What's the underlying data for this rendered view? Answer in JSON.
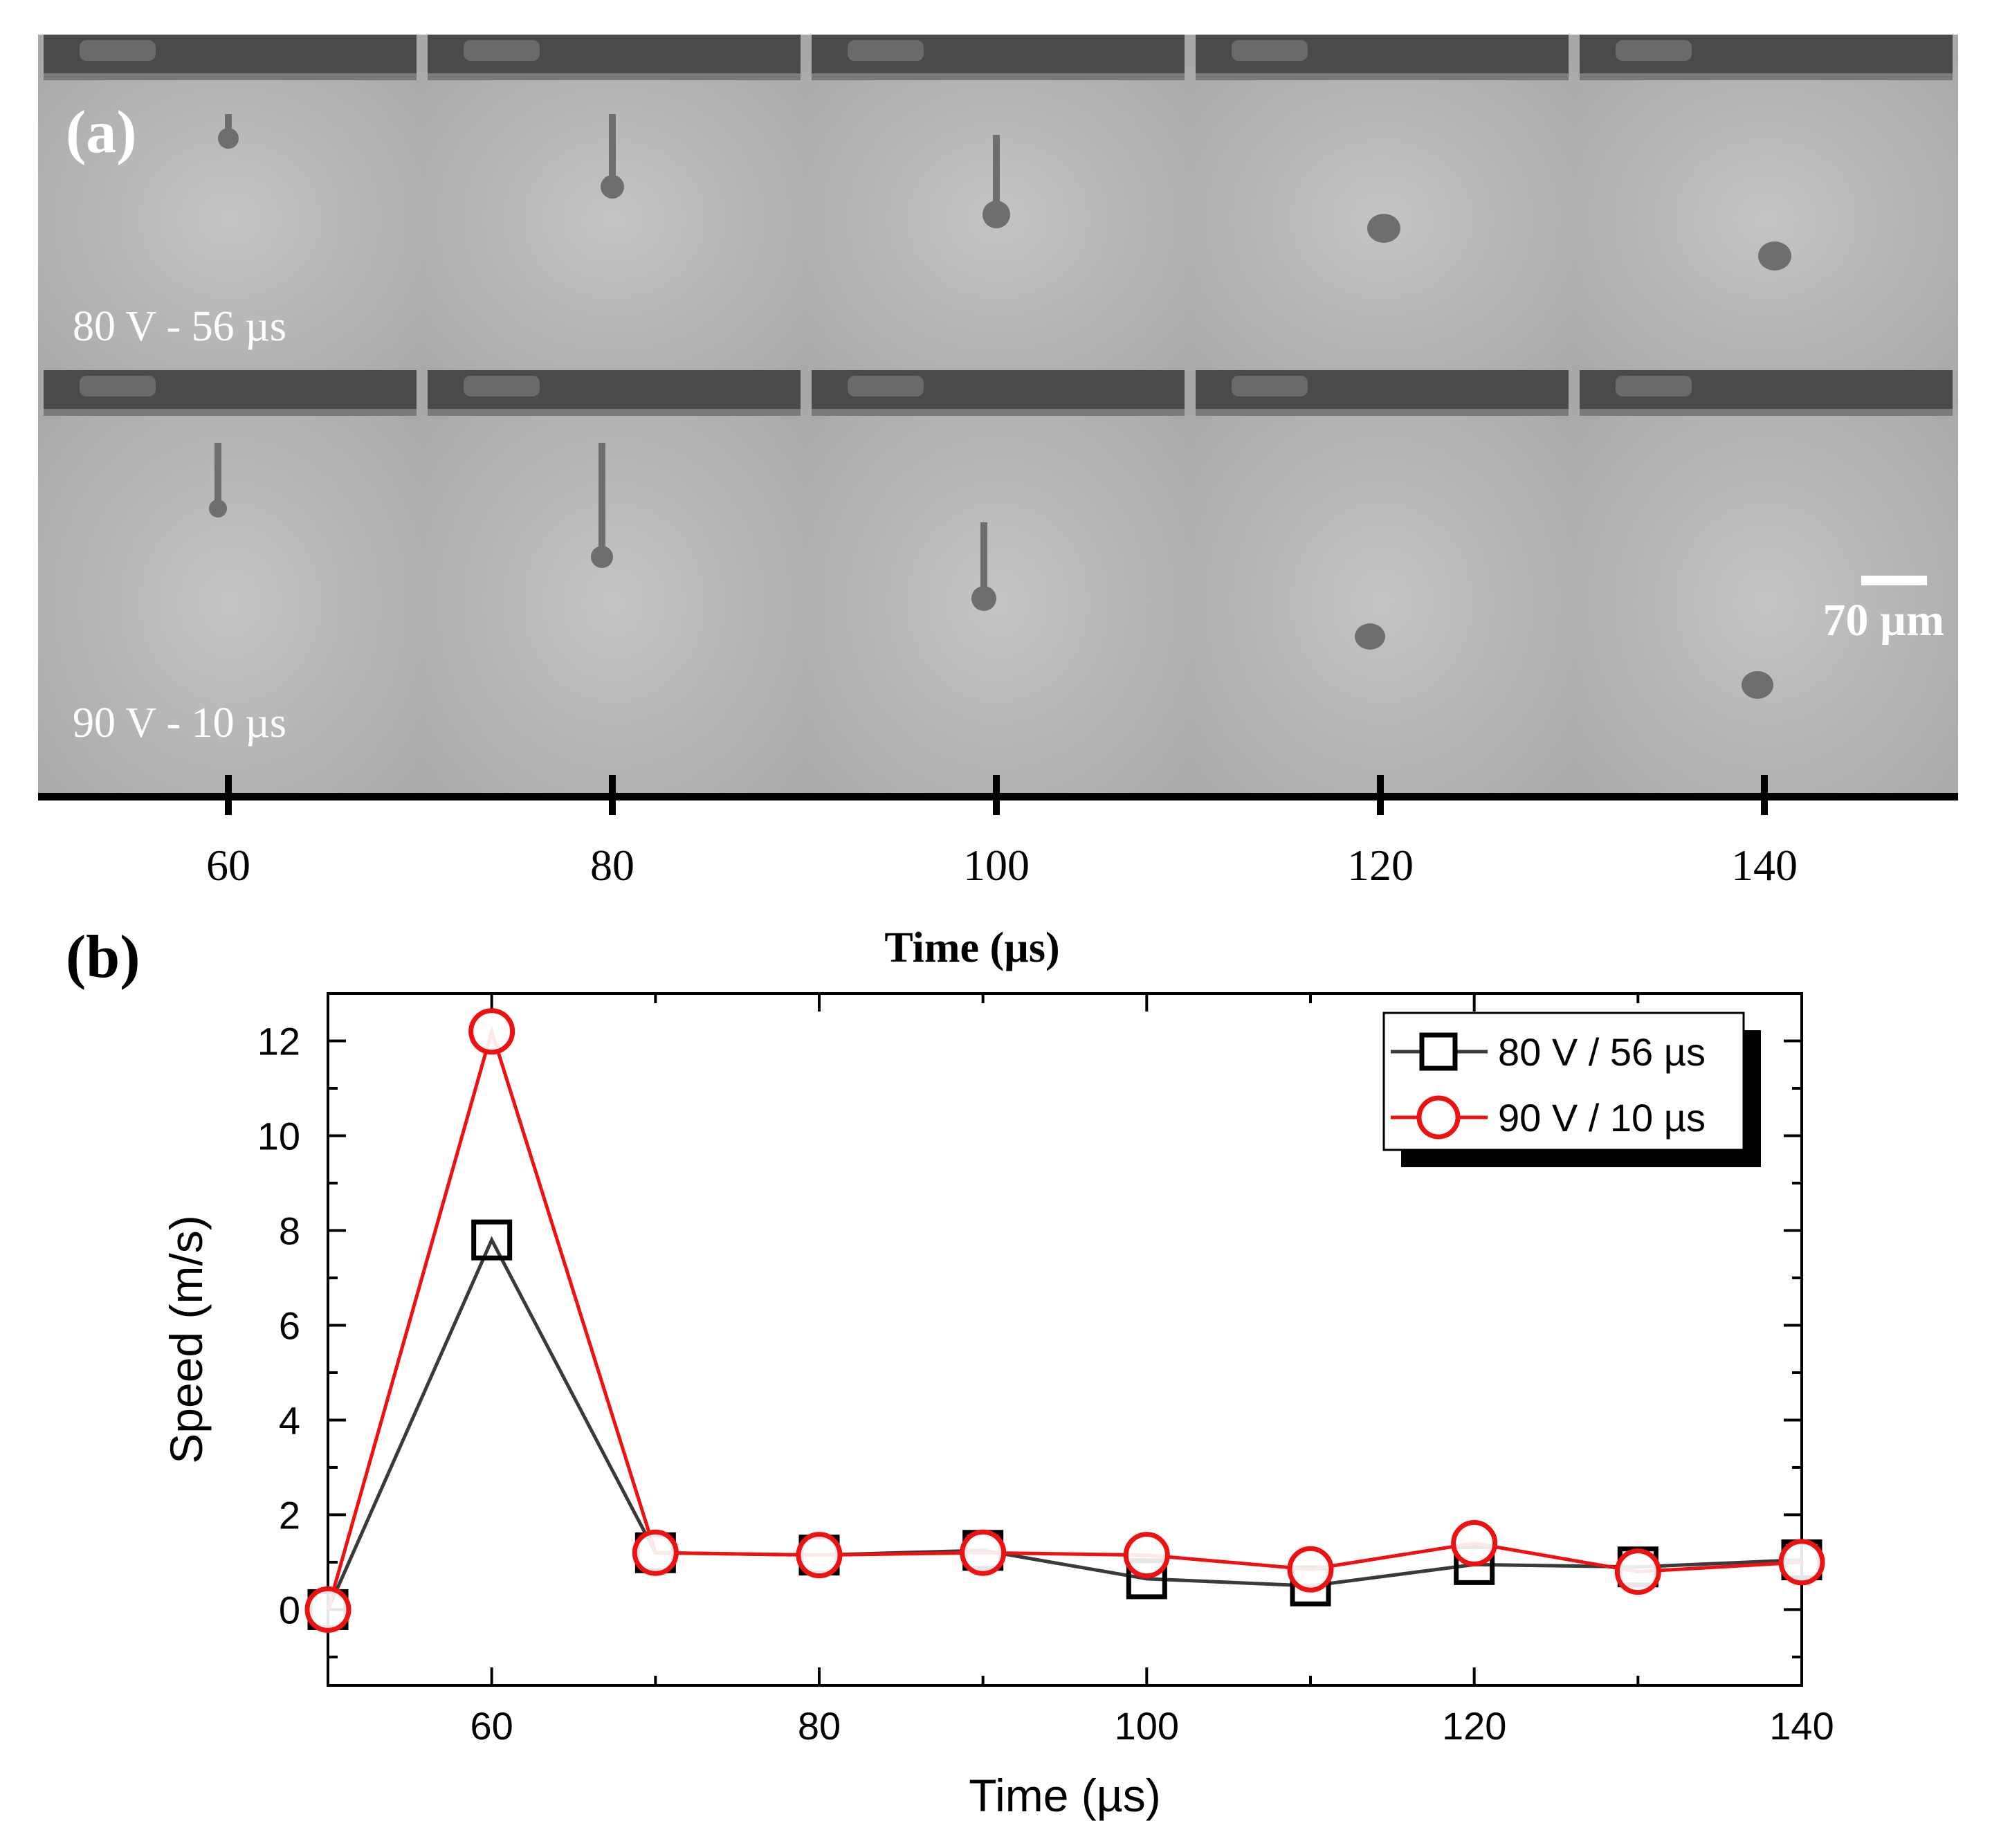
{
  "panel_a": {
    "label": "(a)",
    "row_labels": [
      "80 V - 56 µs",
      "90 V - 10 µs"
    ],
    "scale_bar_label": "70 µm",
    "time_axis": {
      "ticks": [
        "60",
        "80",
        "100",
        "120",
        "140"
      ],
      "label": "Time (µs)"
    },
    "frame_times": [
      60,
      80,
      100,
      120,
      140
    ],
    "colors": {
      "background": "#b9b9b9",
      "nozzle": "#4a4a4a",
      "droplet": "#6e6e6e"
    }
  },
  "panel_b": {
    "label": "(b)"
  },
  "chart_data": {
    "type": "line",
    "title": "",
    "xlabel": "Time (µs)",
    "ylabel": "Speed (m/s)",
    "xlim": [
      50,
      140
    ],
    "ylim": [
      -1.6,
      13
    ],
    "xticks": [
      60,
      80,
      100,
      120,
      140
    ],
    "yticks": [
      0,
      2,
      4,
      6,
      8,
      10,
      12
    ],
    "x": [
      50,
      60,
      70,
      80,
      90,
      100,
      110,
      120,
      130,
      140
    ],
    "series": [
      {
        "name": "80 V / 56 µs",
        "marker": "square",
        "color": "#3a3a3a",
        "values": [
          0,
          7.8,
          1.2,
          1.15,
          1.25,
          0.65,
          0.5,
          0.95,
          0.9,
          1.05
        ]
      },
      {
        "name": "90 V / 10 µs",
        "marker": "circle",
        "color": "#ee1111",
        "values": [
          0,
          12.2,
          1.2,
          1.15,
          1.2,
          1.15,
          0.85,
          1.4,
          0.8,
          1.0
        ]
      }
    ],
    "legend": "top-right"
  }
}
